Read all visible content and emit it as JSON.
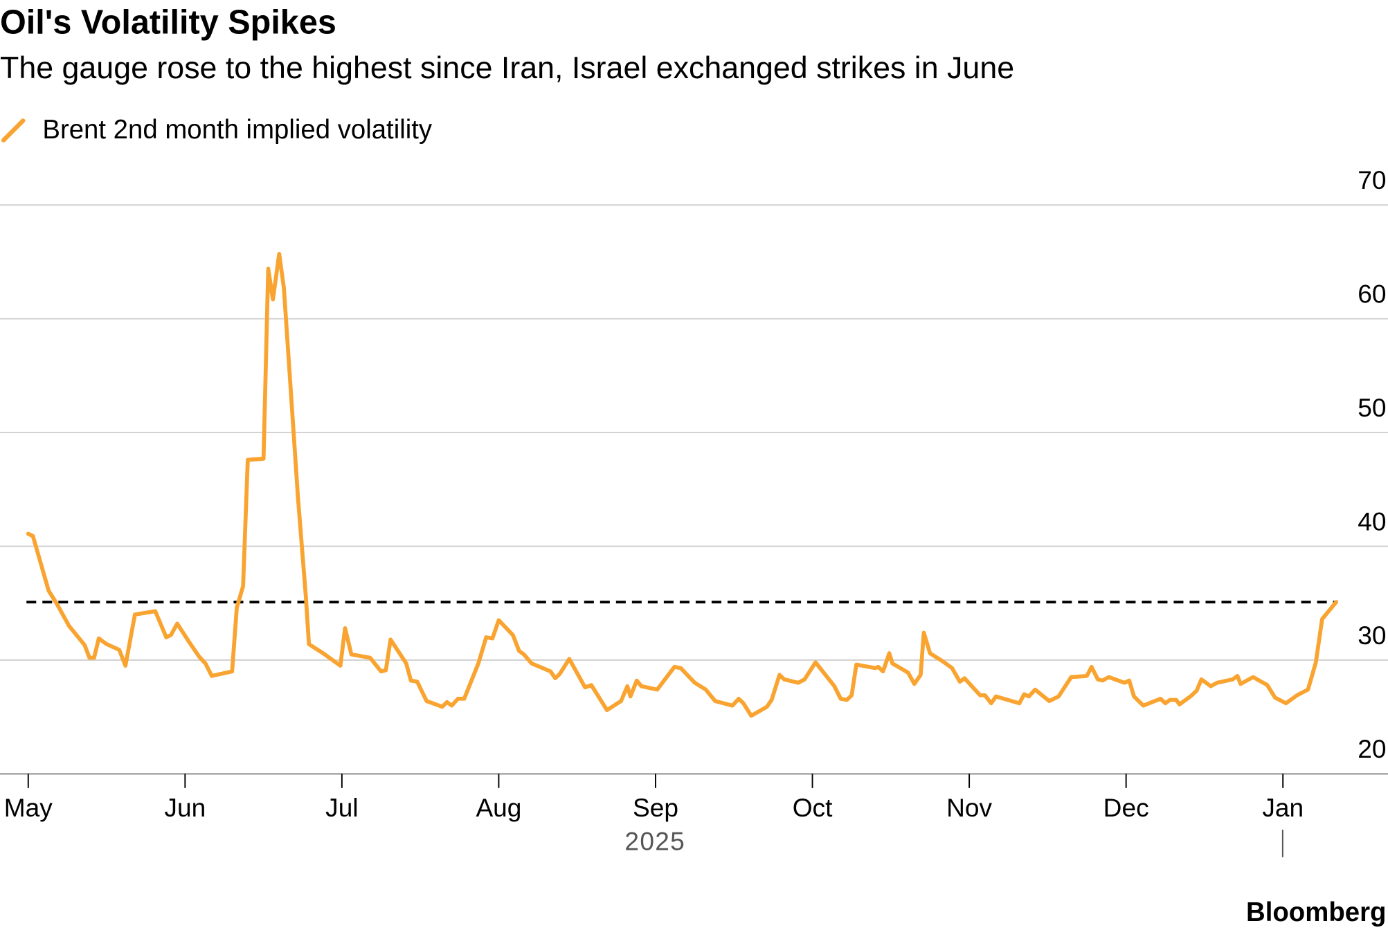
{
  "chart_data": {
    "type": "line",
    "title": "Oil's Volatility Spikes",
    "subtitle": "The gauge rose to the highest since Iran, Israel exchanged strikes in June",
    "x_caption": "2025",
    "source": "Bloomberg",
    "x": [
      5.0,
      5.03,
      5.13,
      5.18,
      5.26,
      5.36,
      5.39,
      5.42,
      5.45,
      5.5,
      5.58,
      5.62,
      5.68,
      5.81,
      5.88,
      5.91,
      5.95,
      6.03,
      6.09,
      6.13,
      6.17,
      6.3,
      6.33,
      6.37,
      6.4,
      6.5,
      6.53,
      6.56,
      6.6,
      6.63,
      6.72,
      6.77,
      6.79,
      6.88,
      6.99,
      7.02,
      7.06,
      7.18,
      7.25,
      7.28,
      7.31,
      7.41,
      7.44,
      7.48,
      7.54,
      7.64,
      7.67,
      7.7,
      7.74,
      7.78,
      7.87,
      7.92,
      7.96,
      8.0,
      8.09,
      8.13,
      8.16,
      8.21,
      8.33,
      8.36,
      8.39,
      8.45,
      8.55,
      8.59,
      8.69,
      8.78,
      8.82,
      8.84,
      8.88,
      8.91,
      9.01,
      9.12,
      9.16,
      9.25,
      9.32,
      9.38,
      9.49,
      9.53,
      9.56,
      9.61,
      9.71,
      9.74,
      9.79,
      9.82,
      9.91,
      9.95,
      10.02,
      10.14,
      10.18,
      10.22,
      10.25,
      10.28,
      10.4,
      10.42,
      10.45,
      10.49,
      10.51,
      10.61,
      10.65,
      10.69,
      10.71,
      10.75,
      10.83,
      10.89,
      10.94,
      10.97,
      11.07,
      11.1,
      11.14,
      11.17,
      11.32,
      11.35,
      11.38,
      11.42,
      11.51,
      11.57,
      11.65,
      11.75,
      11.78,
      11.82,
      11.85,
      11.89,
      11.99,
      12.02,
      12.05,
      12.11,
      12.22,
      12.25,
      12.28,
      12.32,
      12.34,
      12.41,
      12.45,
      12.48,
      12.54,
      12.58,
      12.68,
      12.71,
      12.73,
      12.81,
      12.9,
      12.95,
      13.02,
      13.09,
      13.16,
      13.21,
      13.25,
      13.34
    ],
    "series": [
      {
        "name": "Brent 2nd month implied volatility",
        "color": "#f9a431",
        "values": [
          41.1,
          40.9,
          36.1,
          35.0,
          33.0,
          31.3,
          30.2,
          30.2,
          31.9,
          31.4,
          30.9,
          29.5,
          34.0,
          34.3,
          32.0,
          32.2,
          33.2,
          31.5,
          30.3,
          29.7,
          28.6,
          29.0,
          34.6,
          36.5,
          47.6,
          47.7,
          64.4,
          61.7,
          65.7,
          62.7,
          44.3,
          35.6,
          31.4,
          30.6,
          29.5,
          32.8,
          30.5,
          30.2,
          29.0,
          29.1,
          31.8,
          29.7,
          28.2,
          28.1,
          26.4,
          25.9,
          26.3,
          26.0,
          26.6,
          26.6,
          29.7,
          32.0,
          31.9,
          33.5,
          32.2,
          30.8,
          30.5,
          29.7,
          29.0,
          28.4,
          28.8,
          30.1,
          27.6,
          27.8,
          25.6,
          26.4,
          27.7,
          26.8,
          28.2,
          27.7,
          27.4,
          29.4,
          29.3,
          28.0,
          27.4,
          26.4,
          26.0,
          26.6,
          26.2,
          25.1,
          25.9,
          26.5,
          28.7,
          28.3,
          28.0,
          28.3,
          29.8,
          27.7,
          26.6,
          26.5,
          26.9,
          29.6,
          29.3,
          29.4,
          29.0,
          30.6,
          29.7,
          28.9,
          27.9,
          28.7,
          32.4,
          30.6,
          29.9,
          29.3,
          28.1,
          28.4,
          26.9,
          26.9,
          26.2,
          26.8,
          26.2,
          27.0,
          26.8,
          27.4,
          26.4,
          26.8,
          28.5,
          28.6,
          29.4,
          28.3,
          28.2,
          28.5,
          28.0,
          28.2,
          26.8,
          26.0,
          26.6,
          26.2,
          26.5,
          26.5,
          26.1,
          26.8,
          27.3,
          28.3,
          27.7,
          28.0,
          28.3,
          28.6,
          27.9,
          28.5,
          27.8,
          26.7,
          26.2,
          26.9,
          27.4,
          29.8,
          33.6,
          35.1
        ]
      }
    ],
    "reference_line": 35.1,
    "xlim": [
      4.82,
      13.67
    ],
    "xticks": [
      {
        "value": 5,
        "label": "May"
      },
      {
        "value": 6,
        "label": "Jun"
      },
      {
        "value": 7,
        "label": "Jul"
      },
      {
        "value": 8,
        "label": "Aug"
      },
      {
        "value": 9,
        "label": "Sep"
      },
      {
        "value": 10,
        "label": "Oct"
      },
      {
        "value": 11,
        "label": "Nov"
      },
      {
        "value": 12,
        "label": "Dec"
      },
      {
        "value": 13,
        "label": "Jan"
      }
    ],
    "ylim": [
      20,
      70
    ],
    "yticks": [
      20,
      30,
      40,
      50,
      60,
      70
    ],
    "grid": true
  }
}
